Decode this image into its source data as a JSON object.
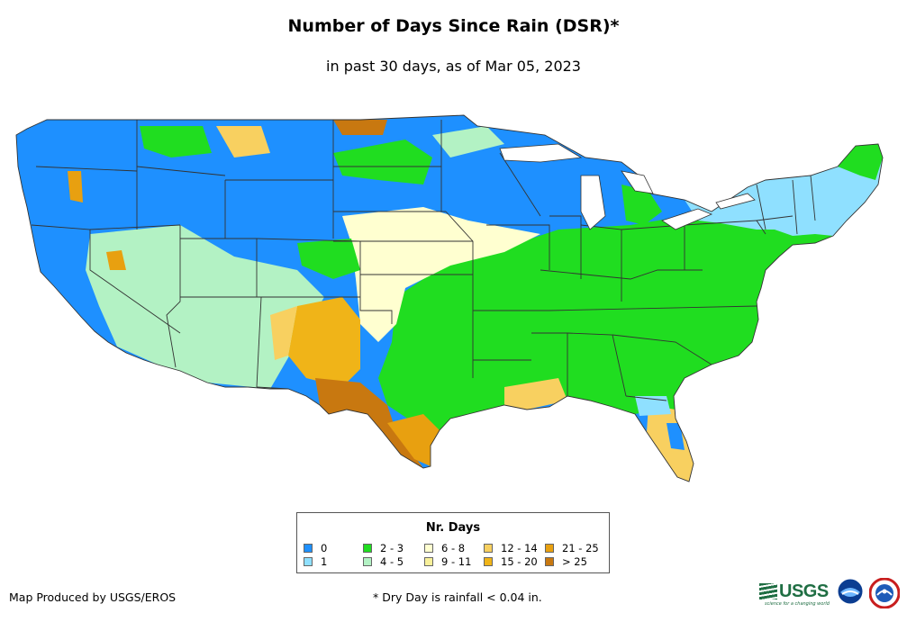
{
  "title": "Number of Days Since Rain (DSR)*",
  "subtitle": "in past 30 days, as of Mar 05, 2023",
  "legend": {
    "title": "Nr. Days",
    "items": [
      {
        "label": "0",
        "color": "#1e90ff"
      },
      {
        "label": "1",
        "color": "#8fe0ff"
      },
      {
        "label": "2 - 3",
        "color": "#20dd20"
      },
      {
        "label": "4 - 5",
        "color": "#b3f2c4"
      },
      {
        "label": "6 - 8",
        "color": "#ffffd0"
      },
      {
        "label": "9 - 11",
        "color": "#f8f09a"
      },
      {
        "label": "12 - 14",
        "color": "#f8d060"
      },
      {
        "label": "15 - 20",
        "color": "#f0b418"
      },
      {
        "label": "21 - 25",
        "color": "#e8a010"
      },
      {
        "label": "> 25",
        "color": "#c87810"
      }
    ]
  },
  "footer": {
    "producer": "Map Produced by USGS/EROS",
    "note": "* Dry Day is rainfall < 0.04 in."
  },
  "logos": {
    "usgs": "USGS",
    "usgs_tagline": "science for a changing world",
    "noaa": "noaa-logo-icon",
    "nws": "nws-logo-icon"
  },
  "colors": {
    "state_border": "#333333",
    "water": "#ffffff"
  }
}
